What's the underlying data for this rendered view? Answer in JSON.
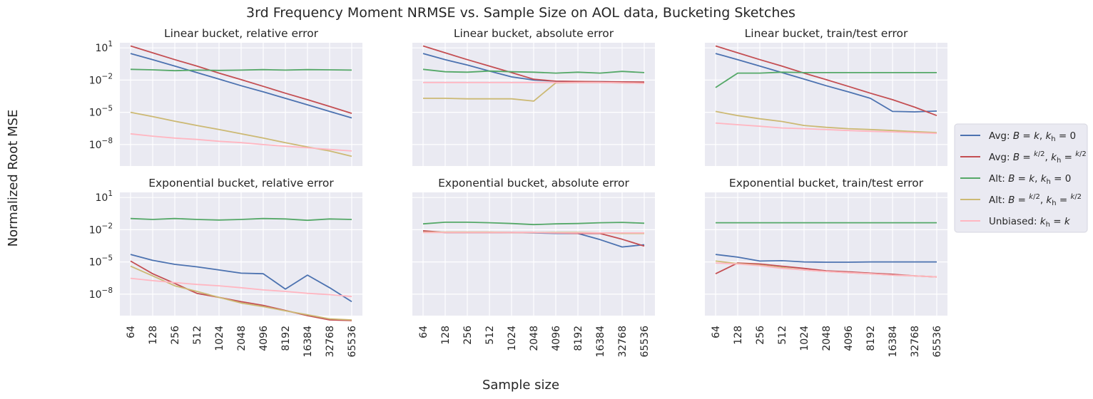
{
  "figure": {
    "title": "3rd Frequency Moment NRMSE vs. Sample Size on AOL data, Bucketing Sketches",
    "xlabel": "Sample size",
    "ylabel": "Normalized Root MSE"
  },
  "legend": {
    "placement": "right",
    "entries": [
      {
        "label": "Avg: B = k, k_h = 0",
        "prefix": "Avg: ",
        "kind": "k0",
        "color": "#4C72B0"
      },
      {
        "label": "Avg: B = k/2, k_h = k/2",
        "prefix": "Avg: ",
        "kind": "half",
        "color": "#C44E52"
      },
      {
        "label": "Alt: B = k, k_h = 0",
        "prefix": "Alt: ",
        "kind": "k0",
        "color": "#55A868"
      },
      {
        "label": "Alt: B = k/2, k_h = k/2",
        "prefix": "Alt: ",
        "kind": "half",
        "color": "#CCB974"
      },
      {
        "label": "Unbiased: k_h = k",
        "prefix": "Unbiased: ",
        "kind": "unb",
        "color": "#FFB6C1"
      }
    ]
  },
  "chart_data": [
    {
      "type": "line",
      "title": "Linear bucket, relative error",
      "x": [
        "64",
        "128",
        "256",
        "512",
        "1024",
        "2048",
        "4096",
        "8192",
        "16384",
        "32768",
        "65536"
      ],
      "yscale": "log",
      "ylim": [
        1e-10,
        30
      ],
      "yticks": [
        "10^1",
        "10^-2",
        "10^-5",
        "10^-8"
      ],
      "series": [
        {
          "name": "Avg: B = k, k_h = 0",
          "values": [
            3,
            0.8,
            0.2,
            0.05,
            0.0125,
            0.003,
            0.0008,
            0.0002,
            5e-05,
            1.2e-05,
            3e-06
          ]
        },
        {
          "name": "Avg: B = k/2, k_h = k/2",
          "values": [
            15,
            3.5,
            0.8,
            0.2,
            0.045,
            0.011,
            0.0026,
            0.0006,
            0.00015,
            3.5e-05,
            8e-06
          ]
        },
        {
          "name": "Alt: B = k, k_h = 0",
          "values": [
            0.1,
            0.09,
            0.075,
            0.085,
            0.08,
            0.085,
            0.095,
            0.085,
            0.095,
            0.09,
            0.085
          ]
        },
        {
          "name": "Alt: B = k/2, k_h = k/2",
          "values": [
            1e-05,
            4e-06,
            1.5e-06,
            6e-07,
            2.5e-07,
            1e-07,
            4e-08,
            1.5e-08,
            6e-09,
            2.5e-09,
            8e-10
          ]
        },
        {
          "name": "Unbiased: k_h = k",
          "values": [
            1e-07,
            6e-08,
            4e-08,
            3e-08,
            2e-08,
            1.5e-08,
            1e-08,
            7e-09,
            5e-09,
            3.5e-09,
            2.5e-09
          ]
        }
      ]
    },
    {
      "type": "line",
      "title": "Linear bucket, absolute error",
      "x": [
        "64",
        "128",
        "256",
        "512",
        "1024",
        "2048",
        "4096",
        "8192",
        "16384",
        "32768",
        "65536"
      ],
      "yscale": "log",
      "ylim": [
        1e-10,
        30
      ],
      "series": [
        {
          "name": "Avg: B = k, k_h = 0",
          "values": [
            3,
            0.8,
            0.25,
            0.07,
            0.02,
            0.01,
            0.008,
            0.007,
            0.007,
            0.0065,
            0.006
          ]
        },
        {
          "name": "Avg: B = k/2, k_h = k/2",
          "values": [
            15,
            3.5,
            0.8,
            0.2,
            0.05,
            0.012,
            0.008,
            0.0075,
            0.007,
            0.0068,
            0.0065
          ]
        },
        {
          "name": "Alt: B = k, k_h = 0",
          "values": [
            0.1,
            0.06,
            0.055,
            0.07,
            0.06,
            0.055,
            0.045,
            0.055,
            0.045,
            0.065,
            0.05
          ]
        },
        {
          "name": "Alt: B = k/2, k_h = k/2",
          "values": [
            0.0002,
            0.0002,
            0.00018,
            0.00018,
            0.00018,
            0.00011,
            0.0055,
            0.006,
            0.006,
            0.0055,
            0.005
          ]
        },
        {
          "name": "Unbiased: k_h = k",
          "values": [
            0.006,
            0.006,
            0.006,
            0.006,
            0.006,
            0.006,
            0.006,
            0.006,
            0.006,
            0.0055,
            0.005
          ]
        }
      ]
    },
    {
      "type": "line",
      "title": "Linear bucket, train/test error",
      "x": [
        "64",
        "128",
        "256",
        "512",
        "1024",
        "2048",
        "4096",
        "8192",
        "16384",
        "32768",
        "65536"
      ],
      "yscale": "log",
      "ylim": [
        1e-10,
        30
      ],
      "series": [
        {
          "name": "Avg: B = k, k_h = 0",
          "values": [
            3,
            0.8,
            0.2,
            0.05,
            0.0125,
            0.003,
            0.0008,
            0.0002,
            1.2e-05,
            1.1e-05,
            1.3e-05
          ]
        },
        {
          "name": "Avg: B = k/2, k_h = k/2",
          "values": [
            15,
            3.5,
            0.8,
            0.2,
            0.045,
            0.011,
            0.0026,
            0.0006,
            0.00015,
            3e-05,
            5e-06
          ]
        },
        {
          "name": "Alt: B = k, k_h = 0",
          "values": [
            0.002,
            0.045,
            0.045,
            0.055,
            0.05,
            0.05,
            0.05,
            0.05,
            0.05,
            0.05,
            0.05
          ]
        },
        {
          "name": "Alt: B = k/2, k_h = k/2",
          "values": [
            1.2e-05,
            5e-06,
            2.5e-06,
            1.4e-06,
            6e-07,
            4e-07,
            3e-07,
            2.5e-07,
            2e-07,
            1.6e-07,
            1.3e-07
          ]
        },
        {
          "name": "Unbiased: k_h = k",
          "values": [
            1e-06,
            7e-07,
            5e-07,
            3.5e-07,
            3e-07,
            2.5e-07,
            2e-07,
            1.7e-07,
            1.5e-07,
            1.3e-07,
            1.1e-07
          ]
        }
      ]
    },
    {
      "type": "line",
      "title": "Exponential bucket, relative error",
      "x": [
        "64",
        "128",
        "256",
        "512",
        "1024",
        "2048",
        "4096",
        "8192",
        "16384",
        "32768",
        "65536"
      ],
      "yscale": "log",
      "ylim": [
        1e-10,
        30
      ],
      "yticks": [
        "10^1",
        "10^-2",
        "10^-5",
        "10^-8"
      ],
      "series": [
        {
          "name": "Avg: B = k, k_h = 0",
          "values": [
            5e-05,
            1.4e-05,
            6e-06,
            3.5e-06,
            1.8e-06,
            9e-07,
            8e-07,
            3e-08,
            6e-07,
            4e-08,
            2e-09
          ]
        },
        {
          "name": "Avg: B = k/2, k_h = k/2",
          "values": [
            1.2e-05,
            8e-07,
            1e-07,
            1.2e-08,
            5e-09,
            2e-09,
            9e-10,
            3e-10,
            1e-10,
            4e-11,
            3.5e-11
          ]
        },
        {
          "name": "Alt: B = k, k_h = 0",
          "values": [
            0.11,
            0.09,
            0.11,
            0.09,
            0.08,
            0.09,
            0.11,
            0.1,
            0.075,
            0.1,
            0.09
          ]
        },
        {
          "name": "Alt: B = k/2, k_h = k/2",
          "values": [
            4e-06,
            5e-07,
            6e-08,
            1.8e-08,
            5e-09,
            1.5e-09,
            7e-10,
            2.8e-10,
            1.2e-10,
            5e-11,
            4e-11
          ]
        },
        {
          "name": "Unbiased: k_h = k",
          "values": [
            3e-07,
            1.8e-07,
            1.2e-07,
            8e-08,
            6e-08,
            4e-08,
            2.5e-08,
            1.8e-08,
            1.2e-08,
            9e-09,
            6e-09
          ]
        }
      ]
    },
    {
      "type": "line",
      "title": "Exponential bucket, absolute error",
      "x": [
        "64",
        "128",
        "256",
        "512",
        "1024",
        "2048",
        "4096",
        "8192",
        "16384",
        "32768",
        "65536"
      ],
      "yscale": "log",
      "ylim": [
        1e-10,
        30
      ],
      "series": [
        {
          "name": "Avg: B = k, k_h = 0",
          "values": [
            0.007,
            0.0055,
            0.0055,
            0.0055,
            0.0055,
            0.005,
            0.0045,
            0.0045,
            0.0012,
            0.00025,
            0.0004
          ]
        },
        {
          "name": "Avg: B = k/2, k_h = k/2",
          "values": [
            0.008,
            0.0055,
            0.0055,
            0.0055,
            0.0055,
            0.0055,
            0.005,
            0.0045,
            0.0045,
            0.0013,
            0.0003
          ]
        },
        {
          "name": "Alt: B = k, k_h = 0",
          "values": [
            0.035,
            0.05,
            0.05,
            0.045,
            0.038,
            0.03,
            0.035,
            0.038,
            0.045,
            0.048,
            0.04
          ]
        },
        {
          "name": "Alt: B = k/2, k_h = k/2",
          "values": [
            0.006,
            0.006,
            0.006,
            0.006,
            0.0055,
            0.0055,
            0.0055,
            0.0055,
            0.005,
            0.0045,
            0.0045
          ]
        },
        {
          "name": "Unbiased: k_h = k",
          "values": [
            0.0055,
            0.0055,
            0.0055,
            0.0055,
            0.0055,
            0.0055,
            0.005,
            0.005,
            0.005,
            0.005,
            0.005
          ]
        }
      ]
    },
    {
      "type": "line",
      "title": "Exponential bucket, train/test error",
      "x": [
        "64",
        "128",
        "256",
        "512",
        "1024",
        "2048",
        "4096",
        "8192",
        "16384",
        "32768",
        "65536"
      ],
      "yscale": "log",
      "ylim": [
        1e-10,
        30
      ],
      "series": [
        {
          "name": "Avg: B = k, k_h = 0",
          "values": [
            5e-05,
            2.8e-05,
            1.2e-05,
            1.3e-05,
            1e-05,
            9.5e-06,
            9.5e-06,
            1e-05,
            1e-05,
            1e-05,
            1e-05
          ]
        },
        {
          "name": "Avg: B = k/2, k_h = k/2",
          "values": [
            8e-07,
            8e-06,
            6.5e-06,
            4e-06,
            2.5e-06,
            1.5e-06,
            1.2e-06,
            9e-07,
            7e-07,
            5e-07,
            4e-07
          ]
        },
        {
          "name": "Alt: B = k, k_h = 0",
          "values": [
            0.045,
            0.045,
            0.045,
            0.045,
            0.045,
            0.045,
            0.045,
            0.045,
            0.045,
            0.045,
            0.045
          ]
        },
        {
          "name": "Alt: B = k/2, k_h = k/2",
          "values": [
            1.2e-05,
            7e-06,
            5e-06,
            3e-06,
            1.8e-06,
            1.3e-06,
            1e-06,
            8e-07,
            6e-07,
            5e-07,
            4e-07
          ]
        },
        {
          "name": "Unbiased: k_h = k",
          "values": [
            8e-06,
            6.5e-06,
            4.5e-06,
            2.5e-06,
            1.8e-06,
            1.3e-06,
            1e-06,
            8e-07,
            6e-07,
            5e-07,
            4e-07
          ]
        }
      ]
    }
  ]
}
